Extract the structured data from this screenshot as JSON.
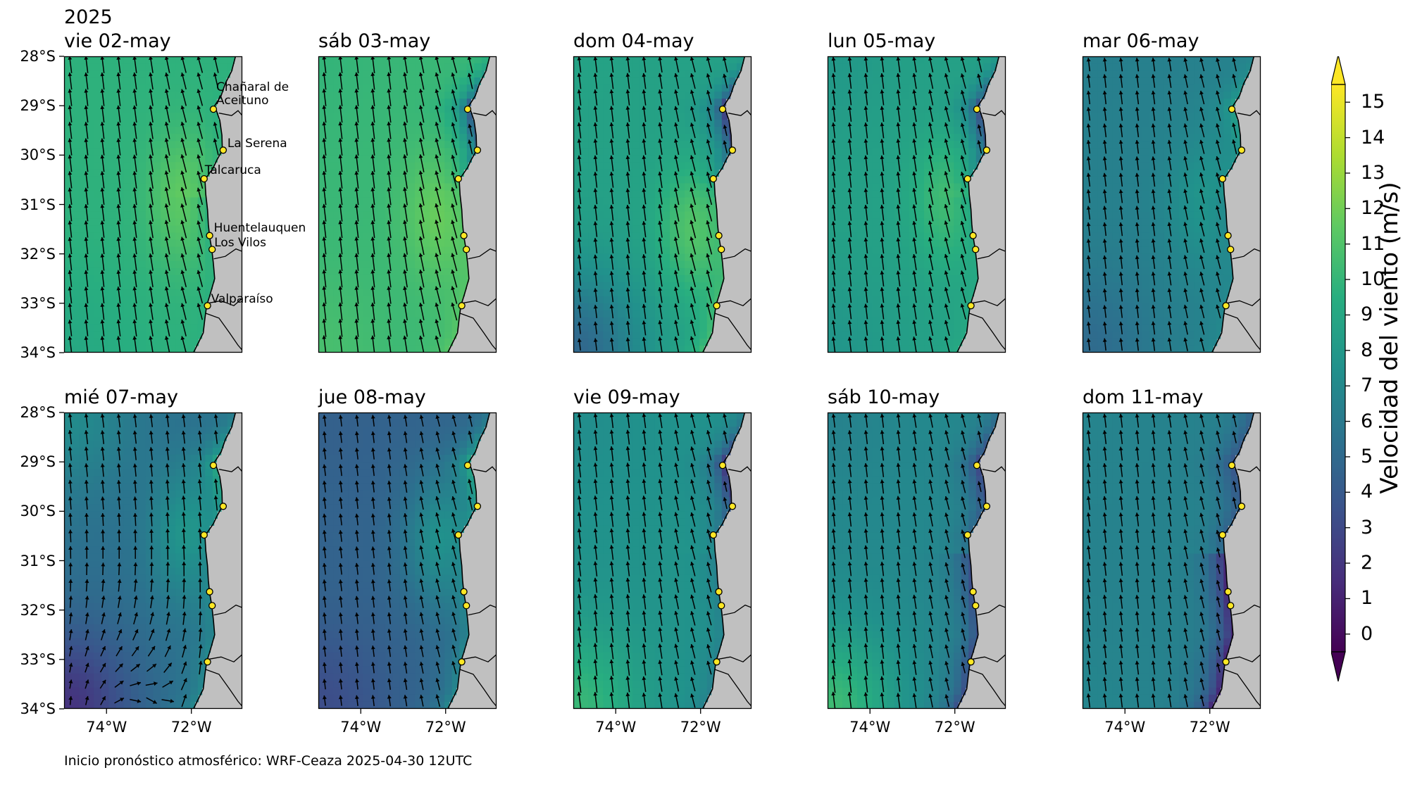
{
  "figure": {
    "year": "2025",
    "footer": "Inicio pronóstico atmosférico: WRF-Ceaza 2025-04-30 12UTC"
  },
  "map": {
    "lat_range": [
      -34,
      -28
    ],
    "lon_range": [
      -75,
      -70.8
    ],
    "lat_ticks": [
      {
        "value": -28,
        "label": "28°S"
      },
      {
        "value": -29,
        "label": "29°S"
      },
      {
        "value": -30,
        "label": "30°S"
      },
      {
        "value": -31,
        "label": "31°S"
      },
      {
        "value": -32,
        "label": "32°S"
      },
      {
        "value": -33,
        "label": "33°S"
      },
      {
        "value": -34,
        "label": "34°S"
      }
    ],
    "lon_ticks": [
      {
        "value": -74,
        "label": "74°W"
      },
      {
        "value": -72,
        "label": "72°W"
      }
    ],
    "land_color": "#c0c0c0",
    "marker_color": "#fde725",
    "cities": [
      {
        "name": "Chañaral de Aceituno",
        "lat": -29.07,
        "lon": -71.48
      },
      {
        "name": "La Serena",
        "lat": -29.9,
        "lon": -71.25
      },
      {
        "name": "Talcaruca",
        "lat": -30.48,
        "lon": -71.7
      },
      {
        "name": "Huentelauquen",
        "lat": -31.63,
        "lon": -71.57
      },
      {
        "name": "Los Vilos",
        "lat": -31.91,
        "lon": -71.51
      },
      {
        "name": "Valparaíso",
        "lat": -33.05,
        "lon": -71.62
      }
    ],
    "coastline": [
      [
        -28.0,
        -70.96
      ],
      [
        -28.3,
        -71.05
      ],
      [
        -28.55,
        -71.2
      ],
      [
        -28.8,
        -71.3
      ],
      [
        -29.0,
        -71.45
      ],
      [
        -29.3,
        -71.33
      ],
      [
        -29.6,
        -71.28
      ],
      [
        -29.9,
        -71.27
      ],
      [
        -30.1,
        -71.4
      ],
      [
        -30.25,
        -71.48
      ],
      [
        -30.5,
        -71.68
      ],
      [
        -30.8,
        -71.66
      ],
      [
        -31.1,
        -71.62
      ],
      [
        -31.4,
        -71.6
      ],
      [
        -31.65,
        -71.57
      ],
      [
        -31.9,
        -71.52
      ],
      [
        -32.2,
        -71.48
      ],
      [
        -32.5,
        -71.45
      ],
      [
        -32.8,
        -71.55
      ],
      [
        -33.05,
        -71.64
      ],
      [
        -33.3,
        -71.68
      ],
      [
        -33.6,
        -71.72
      ],
      [
        -34.0,
        -71.95
      ]
    ],
    "borders": [
      [
        [
          -29.15,
          -71.35
        ],
        [
          -29.2,
          -71.05
        ],
        [
          -29.1,
          -70.9
        ],
        [
          -29.2,
          -70.8
        ]
      ],
      [
        [
          -32.1,
          -71.47
        ],
        [
          -32.05,
          -71.2
        ],
        [
          -31.9,
          -70.95
        ],
        [
          -31.95,
          -70.8
        ]
      ],
      [
        [
          -33.0,
          -71.62
        ],
        [
          -32.95,
          -71.3
        ],
        [
          -33.05,
          -71.0
        ],
        [
          -32.9,
          -70.8
        ]
      ],
      [
        [
          -33.2,
          -71.67
        ],
        [
          -33.3,
          -71.35
        ],
        [
          -33.6,
          -71.1
        ],
        [
          -33.85,
          -70.9
        ],
        [
          -33.95,
          -70.8
        ]
      ]
    ]
  },
  "colorbar": {
    "label": "Velocidad del viento (m/s)",
    "min": 0,
    "max": 15,
    "ticks": [
      0,
      1,
      2,
      3,
      4,
      5,
      6,
      7,
      8,
      9,
      10,
      11,
      12,
      13,
      14,
      15
    ],
    "colormap": [
      "#440154",
      "#472d7b",
      "#3b528b",
      "#2c728e",
      "#21918c",
      "#28ae80",
      "#5ec962",
      "#addc30",
      "#fde725"
    ]
  },
  "panels": [
    {
      "title": "vie 02-may",
      "regime": "southerly",
      "offshore_speed": 9.6,
      "jet_speed": 11.5,
      "jet_lat": -30.9,
      "sw_speed": 9.0,
      "nearshore_speed": 9.5,
      "north_coast_speed": 9.5,
      "north_corner_speed": 9.6
    },
    {
      "title": "sáb 03-may",
      "regime": "southerly",
      "offshore_speed": 10.0,
      "jet_speed": 11.6,
      "jet_lat": -31.2,
      "sw_speed": 10.5,
      "nearshore_speed": 11.0,
      "north_coast_speed": 3.5,
      "north_corner_speed": 9.8
    },
    {
      "title": "dom 04-may",
      "regime": "southerly",
      "offshore_speed": 8.5,
      "jet_speed": 11.0,
      "jet_lat": -31.5,
      "sw_speed": 5.0,
      "nearshore_speed": 10.3,
      "north_coast_speed": 2.0,
      "north_corner_speed": 8.6
    },
    {
      "title": "lun 05-may",
      "regime": "southerly",
      "offshore_speed": 8.5,
      "jet_speed": 10.5,
      "jet_lat": -30.9,
      "sw_speed": 7.8,
      "nearshore_speed": 9.0,
      "north_coast_speed": 3.0,
      "north_corner_speed": 8.0
    },
    {
      "title": "mar 06-may",
      "regime": "southerly",
      "offshore_speed": 6.5,
      "jet_speed": 7.8,
      "jet_lat": -31.0,
      "sw_speed": 5.2,
      "nearshore_speed": 7.0,
      "north_coast_speed": 8.5,
      "north_corner_speed": 6.4
    },
    {
      "title": "mié 07-may",
      "regime": "cyclonic",
      "offshore_speed": 5.5,
      "jet_speed": 7.8,
      "jet_lat": -30.5,
      "sw_speed": 2.2,
      "nearshore_speed": 7.0,
      "north_coast_speed": 9.0,
      "north_corner_speed": 7.2
    },
    {
      "title": "jue 08-may",
      "regime": "southerly",
      "offshore_speed": 4.8,
      "jet_speed": 7.5,
      "jet_lat": -30.6,
      "sw_speed": 3.5,
      "nearshore_speed": 7.0,
      "north_coast_speed": 9.0,
      "north_corner_speed": 4.6
    },
    {
      "title": "vie 09-may",
      "regime": "southerly",
      "offshore_speed": 7.6,
      "jet_speed": 7.8,
      "jet_lat": -31.0,
      "sw_speed": 10.0,
      "nearshore_speed": 6.5,
      "north_coast_speed": 2.0,
      "north_corner_speed": 7.3
    },
    {
      "title": "sáb 10-may",
      "regime": "southerly",
      "offshore_speed": 7.0,
      "jet_speed": 7.0,
      "jet_lat": -31.0,
      "sw_speed": 10.2,
      "nearshore_speed": 3.5,
      "north_coast_speed": 3.0,
      "north_corner_speed": 6.6
    },
    {
      "title": "dom 11-may",
      "regime": "southerly",
      "offshore_speed": 6.6,
      "jet_speed": 6.8,
      "jet_lat": -31.0,
      "sw_speed": 6.8,
      "nearshore_speed": 1.5,
      "north_coast_speed": 4.0,
      "north_corner_speed": 6.7
    }
  ]
}
